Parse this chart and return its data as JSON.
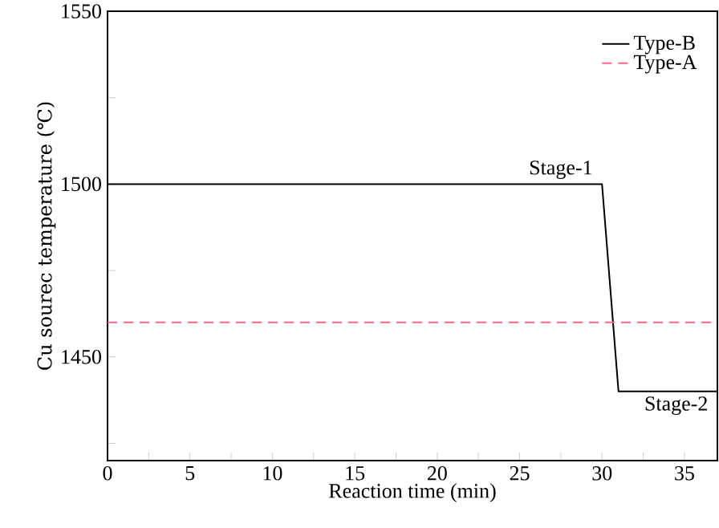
{
  "chart_data": {
    "type": "line",
    "xlabel": "Reaction time (min)",
    "ylabel": "Cu sourec temperature (℃)",
    "xlim": [
      0,
      37
    ],
    "ylim": [
      1420,
      1550
    ],
    "xticks": [
      0,
      {
        "value": 2.5,
        "label": null
      },
      5,
      {
        "value": 7.5,
        "label": null
      },
      10,
      {
        "value": 12.5,
        "label": null
      },
      15,
      {
        "value": 17.5,
        "label": null
      },
      20,
      {
        "value": 22.5,
        "label": null
      },
      25,
      {
        "value": 27.5,
        "label": null
      },
      30,
      {
        "value": 32.5,
        "label": null
      },
      35
    ],
    "yticks": [
      {
        "value": 1425,
        "label": null
      },
      1450,
      {
        "value": 1475,
        "label": null
      },
      1500,
      {
        "value": 1525,
        "label": null
      },
      1550
    ],
    "legend": "top right",
    "grid": false,
    "marker": "none",
    "series": [
      {
        "name": "Type-B",
        "color": "#000000",
        "line_style": "solid",
        "x": [
          0,
          30,
          31,
          37
        ],
        "values": [
          1500,
          1500,
          1440,
          1440
        ]
      },
      {
        "name": "Type-A",
        "color": "#ff6688",
        "line_style": "dashed",
        "x": [
          0,
          37
        ],
        "values": [
          1460,
          1460
        ]
      }
    ],
    "annotations": [
      {
        "text": "Stage-1",
        "x": 27.5,
        "y": 1500
      },
      {
        "text": "Stage-2",
        "x": 34.5,
        "y": 1440
      }
    ]
  }
}
